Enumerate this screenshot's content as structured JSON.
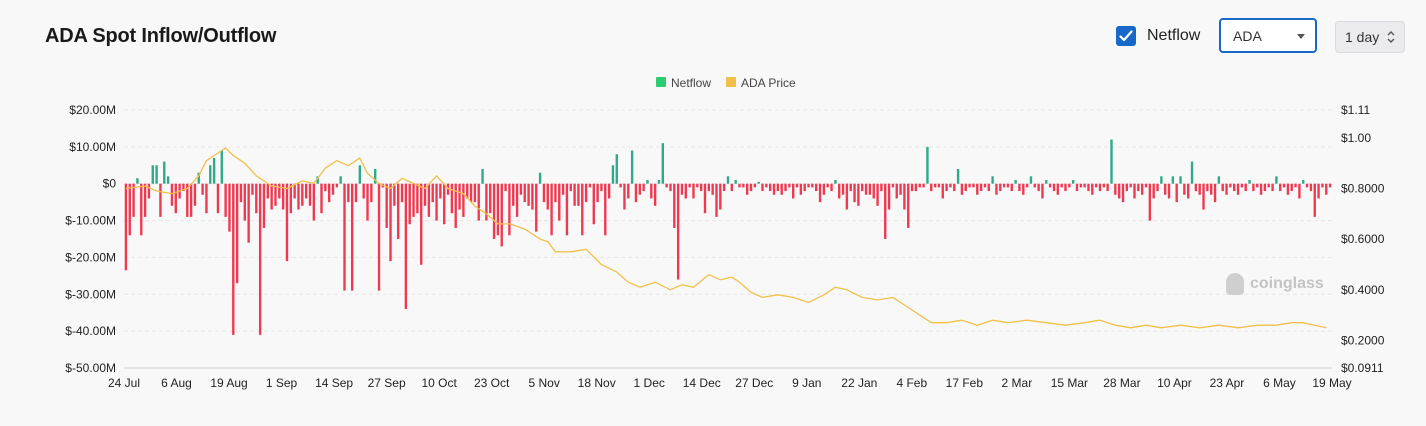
{
  "title": "ADA Spot Inflow/Outflow",
  "controls": {
    "netflow_label": "Netflow",
    "netflow_checked": true,
    "coin_select": "ADA",
    "interval": "1 day"
  },
  "watermark": "coinglass",
  "chart_data": {
    "type": "bar+line",
    "legend": [
      "Netflow",
      "ADA Price"
    ],
    "colors": {
      "positive": "#2eaa88",
      "negative": "#ef3950",
      "price": "#f0c04a",
      "legend_netflow": "#2ecc71",
      "legend_price": "#f0c04a"
    },
    "y_left": {
      "ticks": [
        "$20.00M",
        "$10.00M",
        "$0",
        "$-10.00M",
        "$-20.00M",
        "$-30.00M",
        "$-40.00M",
        "$-50.00M"
      ],
      "min": -50,
      "max": 20,
      "unit": "M USD"
    },
    "y_right": {
      "ticks": [
        "$1.11",
        "$1.00",
        "$0.8000",
        "$0.6000",
        "$0.4000",
        "$0.2000",
        "$0.0911"
      ],
      "min": 0.0911,
      "max": 1.11
    },
    "x_labels": [
      "24 Jul",
      "6 Aug",
      "19 Aug",
      "1 Sep",
      "14 Sep",
      "27 Sep",
      "10 Oct",
      "23 Oct",
      "5 Nov",
      "18 Nov",
      "1 Dec",
      "14 Dec",
      "27 Dec",
      "9 Jan",
      "22 Jan",
      "4 Feb",
      "17 Feb",
      "2 Mar",
      "15 Mar",
      "28 Mar",
      "10 Apr",
      "23 Apr",
      "6 May",
      "19 May"
    ],
    "netflow": [
      -23.5,
      -14,
      -9,
      1.5,
      -14,
      -9,
      -4,
      5,
      5,
      -9,
      6,
      2,
      -6,
      -8,
      -4,
      -2,
      -9,
      -9,
      -6,
      3,
      -3,
      -8,
      5,
      7,
      -8,
      9,
      -9,
      -13,
      -41,
      -27,
      -5,
      -10,
      -16,
      -3,
      -8,
      -41,
      -12,
      -4,
      -7,
      -6,
      -4,
      -7,
      -21,
      -8,
      -4,
      -7,
      -6,
      -4,
      -6,
      -10,
      2,
      -8,
      -2,
      -5,
      -3,
      -1,
      2,
      -29,
      -5,
      -29,
      -5,
      5,
      -4,
      -10,
      -5,
      4,
      -29,
      -1,
      -12,
      -21,
      -6,
      -15,
      -5,
      -34,
      -11,
      -9,
      -8,
      -22,
      -6,
      -9,
      -5,
      -10,
      -4,
      -11,
      -3,
      -8,
      -12,
      -7,
      -9,
      -4,
      -5,
      -5,
      -10,
      4,
      -10,
      -8,
      -15,
      -14,
      -17,
      -2,
      -14,
      -6,
      -9,
      -3,
      -5,
      -6,
      -7,
      -13,
      3,
      -5,
      -7,
      -14,
      -5,
      -10,
      -3,
      -14,
      -2,
      -6,
      -6,
      -14,
      -5,
      -1,
      -11,
      -5,
      -2,
      -14,
      -4,
      5,
      8,
      -1,
      -7,
      -4,
      9,
      -5,
      -3,
      -2,
      1,
      -4,
      -6,
      1,
      11,
      -1,
      -2,
      -12,
      -26,
      -3,
      -4,
      -1,
      -4,
      -1,
      -2,
      -8,
      -2,
      -3,
      -9,
      -7,
      -2,
      2,
      -2,
      1,
      -1,
      -1,
      -3,
      -2,
      -1,
      0.5,
      -2,
      -1,
      -2,
      -3,
      -2,
      -3,
      -2,
      -1,
      -4,
      -1,
      -3,
      -2,
      -1,
      -1,
      -2,
      -5,
      -3,
      -1,
      -2,
      1,
      -4,
      -3,
      -7,
      -2,
      -5,
      -6,
      -2,
      -3,
      -3,
      -4,
      -6,
      -2,
      -15,
      -7,
      -1,
      -4,
      -3,
      -7,
      -12,
      -2,
      -2,
      -1,
      -1,
      10,
      -2,
      -1,
      -1,
      -4,
      -2,
      -1,
      -2,
      4,
      -3,
      -2,
      -1,
      -1,
      -3,
      -2,
      -1,
      -2,
      2,
      -3,
      -2,
      -1,
      -1,
      -2,
      1,
      -2,
      -3,
      -1,
      2,
      -1,
      -2,
      -4,
      1,
      -1,
      -2,
      -3,
      -1,
      -2,
      -1,
      1,
      -2,
      -1,
      -1,
      -2,
      -3,
      -1,
      -2,
      -1,
      -2,
      12,
      -3,
      -4,
      -5,
      -2,
      -1,
      -4,
      -2,
      -3,
      -1,
      -10,
      -4,
      -2,
      2,
      -3,
      -4,
      2,
      -5,
      2,
      -3,
      -4,
      6,
      -2,
      -3,
      -7,
      -2,
      -3,
      -5,
      2,
      -2,
      -3,
      -1,
      -2,
      -3,
      -1,
      -2,
      1,
      -2,
      -1,
      -3,
      -2,
      -1,
      -2,
      2,
      -2,
      -1,
      -3,
      -2,
      -1,
      -4,
      1,
      -1,
      -2,
      -9,
      -4,
      -1,
      -3,
      -1
    ],
    "price": [
      {
        "x": 0,
        "y": 0.8
      },
      {
        "x": 5,
        "y": 0.81
      },
      {
        "x": 8,
        "y": 0.79
      },
      {
        "x": 12,
        "y": 0.78
      },
      {
        "x": 16,
        "y": 0.8
      },
      {
        "x": 19,
        "y": 0.85
      },
      {
        "x": 21,
        "y": 0.91
      },
      {
        "x": 24,
        "y": 0.94
      },
      {
        "x": 26,
        "y": 0.96
      },
      {
        "x": 28,
        "y": 0.93
      },
      {
        "x": 31,
        "y": 0.9
      },
      {
        "x": 34,
        "y": 0.85
      },
      {
        "x": 38,
        "y": 0.81
      },
      {
        "x": 42,
        "y": 0.8
      },
      {
        "x": 46,
        "y": 0.83
      },
      {
        "x": 49,
        "y": 0.82
      },
      {
        "x": 52,
        "y": 0.88
      },
      {
        "x": 55,
        "y": 0.91
      },
      {
        "x": 58,
        "y": 0.89
      },
      {
        "x": 61,
        "y": 0.92
      },
      {
        "x": 63,
        "y": 0.86
      },
      {
        "x": 66,
        "y": 0.82
      },
      {
        "x": 69,
        "y": 0.8
      },
      {
        "x": 72,
        "y": 0.84
      },
      {
        "x": 75,
        "y": 0.82
      },
      {
        "x": 78,
        "y": 0.8
      },
      {
        "x": 81,
        "y": 0.85
      },
      {
        "x": 84,
        "y": 0.8
      },
      {
        "x": 88,
        "y": 0.78
      },
      {
        "x": 91,
        "y": 0.73
      },
      {
        "x": 94,
        "y": 0.7
      },
      {
        "x": 97,
        "y": 0.66
      },
      {
        "x": 100,
        "y": 0.66
      },
      {
        "x": 104,
        "y": 0.64
      },
      {
        "x": 108,
        "y": 0.6
      },
      {
        "x": 110,
        "y": 0.59
      },
      {
        "x": 112,
        "y": 0.55
      },
      {
        "x": 116,
        "y": 0.55
      },
      {
        "x": 120,
        "y": 0.56
      },
      {
        "x": 124,
        "y": 0.5
      },
      {
        "x": 128,
        "y": 0.47
      },
      {
        "x": 131,
        "y": 0.43
      },
      {
        "x": 134,
        "y": 0.41
      },
      {
        "x": 138,
        "y": 0.43
      },
      {
        "x": 142,
        "y": 0.4
      },
      {
        "x": 145,
        "y": 0.42
      },
      {
        "x": 148,
        "y": 0.41
      },
      {
        "x": 152,
        "y": 0.46
      },
      {
        "x": 155,
        "y": 0.44
      },
      {
        "x": 158,
        "y": 0.45
      },
      {
        "x": 160,
        "y": 0.43
      },
      {
        "x": 163,
        "y": 0.39
      },
      {
        "x": 166,
        "y": 0.37
      },
      {
        "x": 170,
        "y": 0.38
      },
      {
        "x": 174,
        "y": 0.37
      },
      {
        "x": 178,
        "y": 0.35
      },
      {
        "x": 182,
        "y": 0.38
      },
      {
        "x": 185,
        "y": 0.41
      },
      {
        "x": 188,
        "y": 0.4
      },
      {
        "x": 192,
        "y": 0.37
      },
      {
        "x": 196,
        "y": 0.36
      },
      {
        "x": 200,
        "y": 0.37
      },
      {
        "x": 204,
        "y": 0.33
      },
      {
        "x": 207,
        "y": 0.3
      },
      {
        "x": 210,
        "y": 0.27
      },
      {
        "x": 214,
        "y": 0.27
      },
      {
        "x": 218,
        "y": 0.28
      },
      {
        "x": 222,
        "y": 0.26
      },
      {
        "x": 226,
        "y": 0.28
      },
      {
        "x": 230,
        "y": 0.27
      },
      {
        "x": 235,
        "y": 0.28
      },
      {
        "x": 240,
        "y": 0.27
      },
      {
        "x": 245,
        "y": 0.26
      },
      {
        "x": 250,
        "y": 0.27
      },
      {
        "x": 254,
        "y": 0.28
      },
      {
        "x": 258,
        "y": 0.26
      },
      {
        "x": 262,
        "y": 0.25
      },
      {
        "x": 266,
        "y": 0.26
      },
      {
        "x": 270,
        "y": 0.25
      },
      {
        "x": 275,
        "y": 0.26
      },
      {
        "x": 280,
        "y": 0.25
      },
      {
        "x": 285,
        "y": 0.26
      },
      {
        "x": 290,
        "y": 0.25
      },
      {
        "x": 295,
        "y": 0.26
      },
      {
        "x": 300,
        "y": 0.26
      },
      {
        "x": 304,
        "y": 0.27
      },
      {
        "x": 307,
        "y": 0.27
      },
      {
        "x": 310,
        "y": 0.26
      },
      {
        "x": 313,
        "y": 0.25
      }
    ],
    "grid": true,
    "legend_position": "top-center"
  }
}
